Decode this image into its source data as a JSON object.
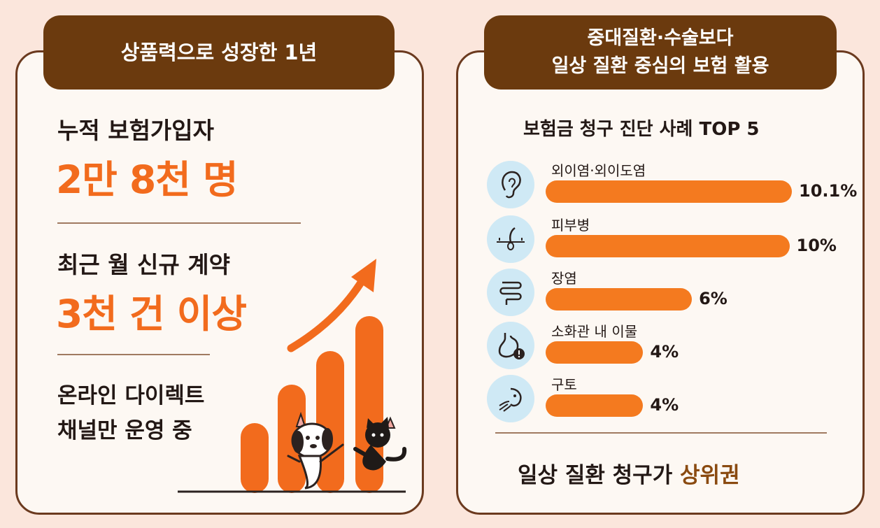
{
  "left": {
    "badge": "상품력으로 성장한 1년",
    "stat1_label": "누적 보험가입자",
    "stat1_value": "2만 8천 명",
    "stat2_label": "최근 월 신규 계약",
    "stat2_value": "3천 건 이상",
    "channel_line1": "온라인 다이렉트",
    "channel_line2": "채널만 운영 중"
  },
  "right": {
    "badge_line1": "중대질환·수술보다",
    "badge_line2": "일상 질환 중심의 보험 활용",
    "summary_prefix": "일상 질환 청구가 ",
    "summary_highlight": "상위권"
  },
  "chart_data": {
    "type": "bar",
    "title": "보험금 청구 진단 사례 TOP 5",
    "categories": [
      "외이염·외이도염",
      "피부병",
      "장염",
      "소화관 내 이물",
      "구토"
    ],
    "values": [
      10.1,
      10,
      6,
      4,
      4
    ],
    "value_labels": [
      "10.1%",
      "10%",
      "6%",
      "4%",
      "4%"
    ],
    "icons": [
      "ear-icon",
      "skin-hair-icon",
      "intestine-icon",
      "stomach-warning-icon",
      "vomit-face-icon"
    ],
    "bar_color": "#f47a1f"
  },
  "colors": {
    "accent": "#f26b1d",
    "badge": "#6b3a0e",
    "background": "#fbe6dc",
    "card": "#fdf8f3"
  }
}
